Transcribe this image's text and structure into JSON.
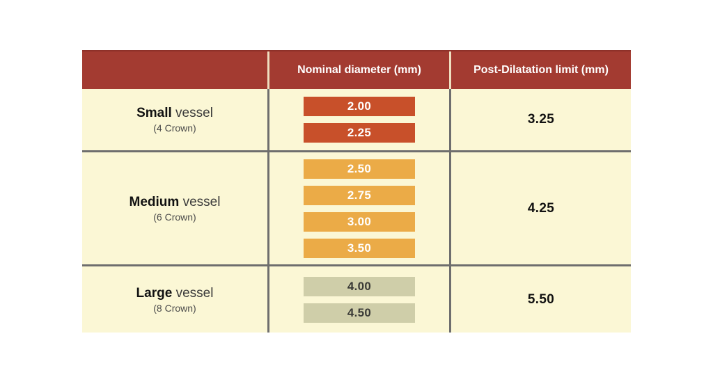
{
  "table": {
    "columns": {
      "vessel": "",
      "nominal": "Nominal diameter (mm)",
      "limit": "Post-Dilatation limit (mm)"
    },
    "rows": [
      {
        "size": "Small",
        "size_suffix": "vessel",
        "crown": "(4 Crown)",
        "diameters": [
          "2.00",
          "2.25"
        ],
        "badge_color": "#C8502A",
        "badge_text_color": "#FFFFFF",
        "limit": "3.25"
      },
      {
        "size": "Medium",
        "size_suffix": "vessel",
        "crown": "(6 Crown)",
        "diameters": [
          "2.50",
          "2.75",
          "3.00",
          "3.50"
        ],
        "badge_color": "#EBAB47",
        "badge_text_color": "#FFFFFF",
        "limit": "4.25"
      },
      {
        "size": "Large",
        "size_suffix": "vessel",
        "crown": "(8 Crown)",
        "diameters": [
          "4.00",
          "4.50"
        ],
        "badge_color": "#CFCEA9",
        "badge_text_color": "#3A3A36",
        "limit": "5.50"
      }
    ],
    "colors": {
      "header_bg": "#A33B31",
      "header_text": "#FFFFFF",
      "row_bg": "#FBF7D5",
      "divider": "#6E6E6E",
      "header_divider": "#EFDFC0"
    }
  },
  "chart_data": {
    "type": "table",
    "columns": [
      "",
      "Nominal diameter (mm)",
      "Post-Dilatation limit (mm)"
    ],
    "rows": [
      {
        "vessel": "Small vessel (4 Crown)",
        "nominal_diameters_mm": [
          2.0,
          2.25
        ],
        "post_dilatation_limit_mm": 3.25
      },
      {
        "vessel": "Medium vessel (6 Crown)",
        "nominal_diameters_mm": [
          2.5,
          2.75,
          3.0,
          3.5
        ],
        "post_dilatation_limit_mm": 4.25
      },
      {
        "vessel": "Large vessel (8 Crown)",
        "nominal_diameters_mm": [
          4.0,
          4.5
        ],
        "post_dilatation_limit_mm": 5.5
      }
    ]
  }
}
